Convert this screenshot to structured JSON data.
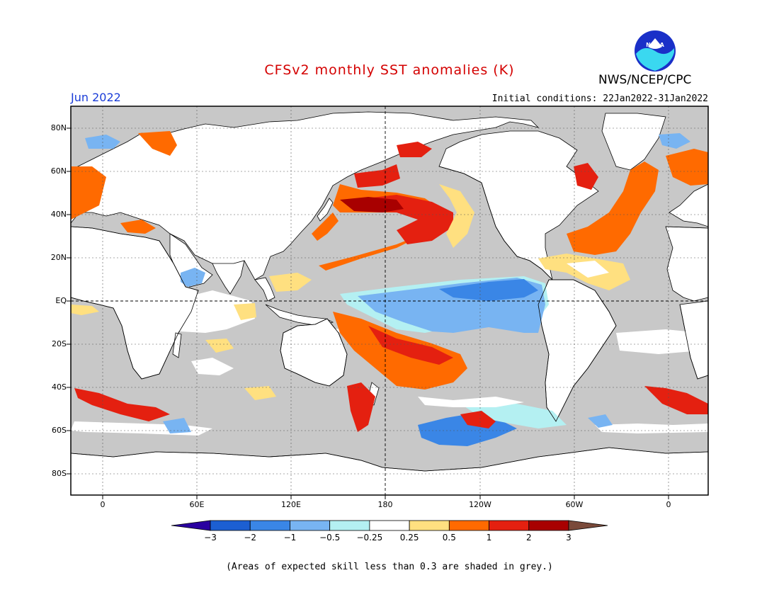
{
  "title": "CFSv2 monthly SST anomalies (K)",
  "agency": "NWS/NCEP/CPC",
  "logo_text": "NOAA",
  "month": "Jun 2022",
  "initial_conditions": "Initial conditions: 22Jan2022-31Jan2022",
  "lat_labels": [
    "80N",
    "60N",
    "40N",
    "20N",
    "EQ",
    "20S",
    "40S",
    "60S",
    "80S"
  ],
  "lon_labels": [
    "0",
    "60E",
    "120E",
    "180",
    "120W",
    "60W",
    "0"
  ],
  "colorbar": {
    "labels": [
      "−3",
      "−2",
      "−1",
      "−0.5",
      "−0.25",
      "0.25",
      "0.5",
      "1",
      "2",
      "3"
    ],
    "colors": [
      "#2a00a0",
      "#1c5fd2",
      "#3a86e6",
      "#78b4f2",
      "#b4f0f2",
      "#ffffff",
      "#ffe080",
      "#ff6a00",
      "#e42010",
      "#a80000",
      "#7a4a3a"
    ]
  },
  "colors": {
    "land": "#ffffff",
    "low_skill": "#c8c8c8",
    "frame": "#000000"
  },
  "footnote": "(Areas of expected skill less than 0.3 are shaded in grey.)"
}
